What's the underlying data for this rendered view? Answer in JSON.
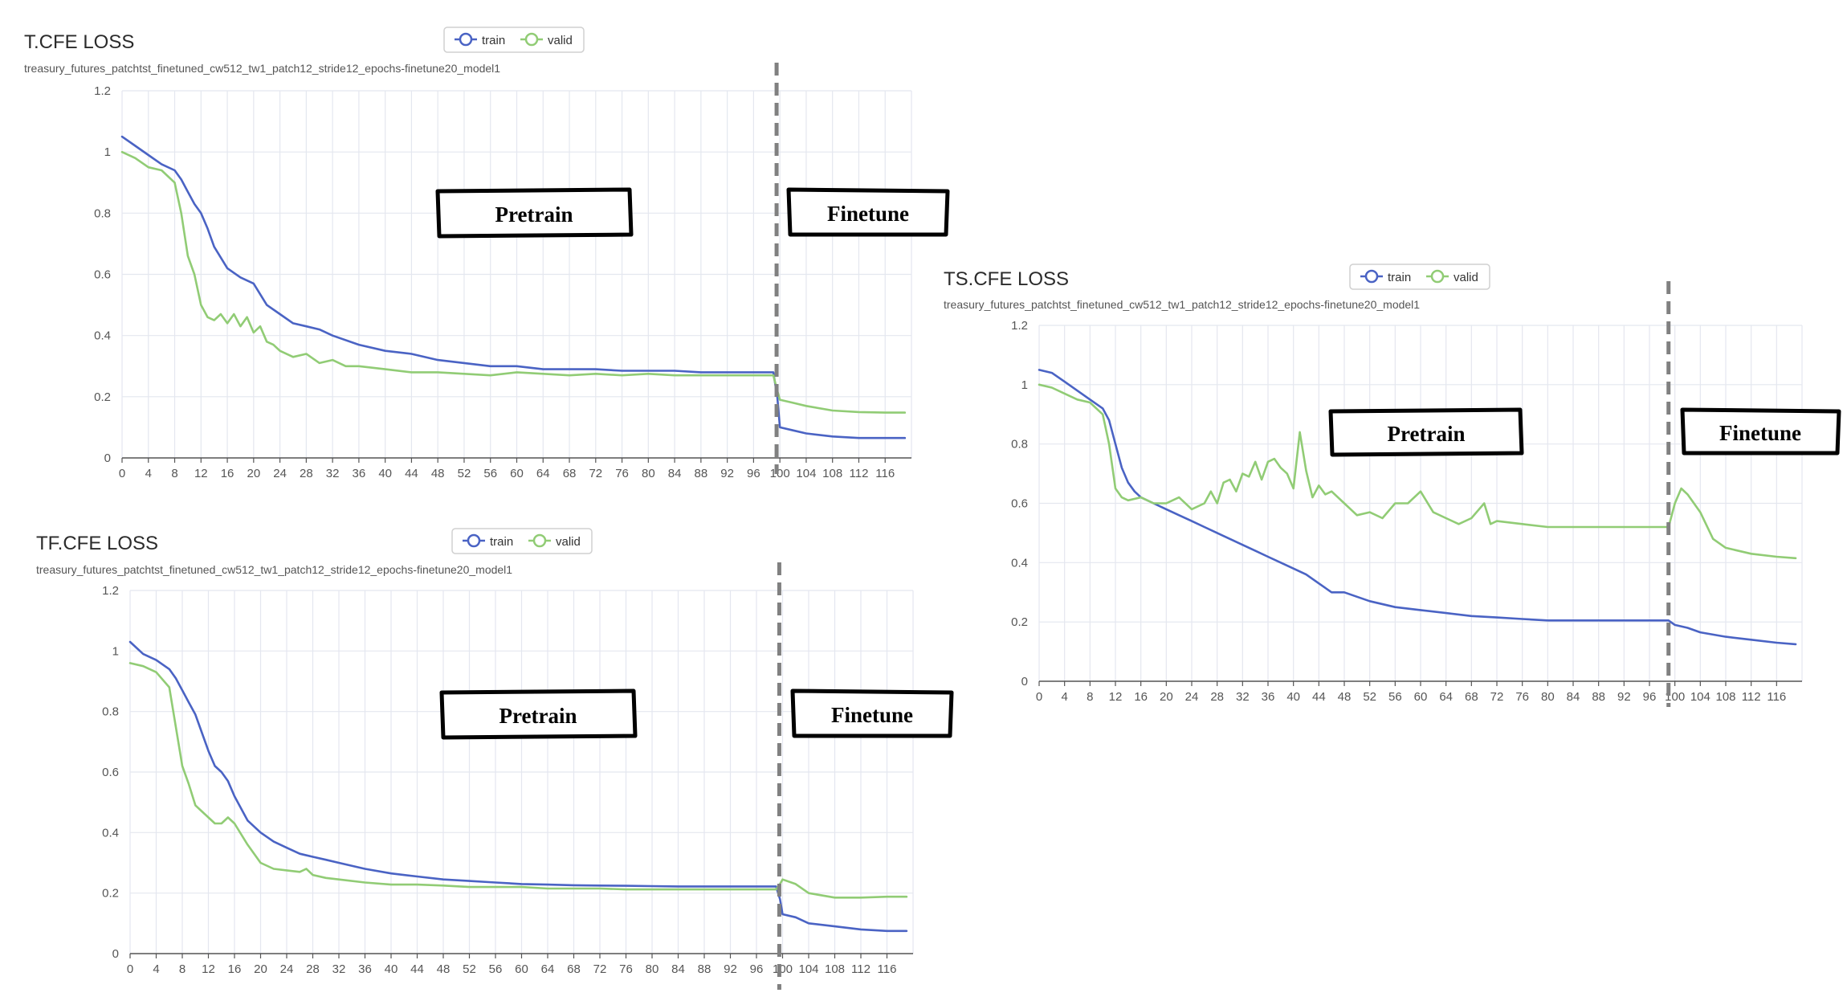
{
  "colors": {
    "train": "#4a63c4",
    "valid": "#91cc75",
    "grid": "#e4e7ef",
    "axis": "#555555",
    "divider": "#808080"
  },
  "legend": {
    "train": "train",
    "valid": "valid"
  },
  "phase_labels": {
    "pretrain": "Pretrain",
    "finetune": "Finetune"
  },
  "chart_data": [
    {
      "id": "tcfe",
      "type": "line",
      "title": "T.CFE LOSS",
      "subtitle": "treasury_futures_patchtst_finetuned_cw512_tw1_patch12_stride12_epochs-finetune20_model1",
      "xlim": [
        0,
        120
      ],
      "xticks": [
        0,
        4,
        8,
        12,
        16,
        20,
        24,
        28,
        32,
        36,
        40,
        44,
        48,
        52,
        56,
        60,
        64,
        68,
        72,
        76,
        80,
        84,
        88,
        92,
        96,
        100,
        104,
        108,
        112,
        116
      ],
      "ylim": [
        0,
        1.2
      ],
      "yticks": [
        "0",
        "0.2",
        "0.4",
        "0.6",
        "0.8",
        "1",
        "1.2"
      ],
      "grid": true,
      "legend_position": "top",
      "divider_x": 99.5,
      "series": [
        {
          "name": "train",
          "x": [
            0,
            2,
            4,
            6,
            8,
            9,
            10,
            11,
            12,
            13,
            14,
            16,
            18,
            20,
            22,
            24,
            26,
            28,
            30,
            32,
            36,
            40,
            44,
            48,
            52,
            56,
            60,
            64,
            68,
            72,
            76,
            80,
            84,
            88,
            92,
            96,
            99,
            99.6,
            100,
            102,
            104,
            108,
            112,
            116,
            119
          ],
          "y": [
            1.05,
            1.02,
            0.99,
            0.96,
            0.94,
            0.91,
            0.87,
            0.83,
            0.8,
            0.75,
            0.69,
            0.62,
            0.59,
            0.57,
            0.5,
            0.47,
            0.44,
            0.43,
            0.42,
            0.4,
            0.37,
            0.35,
            0.34,
            0.32,
            0.31,
            0.3,
            0.3,
            0.29,
            0.29,
            0.29,
            0.285,
            0.285,
            0.285,
            0.28,
            0.28,
            0.28,
            0.28,
            0.2,
            0.1,
            0.09,
            0.08,
            0.07,
            0.065,
            0.065,
            0.065
          ]
        },
        {
          "name": "valid",
          "x": [
            0,
            2,
            4,
            6,
            8,
            9,
            10,
            11,
            12,
            13,
            14,
            15,
            16,
            17,
            18,
            19,
            20,
            21,
            22,
            23,
            24,
            26,
            28,
            30,
            32,
            34,
            36,
            40,
            44,
            48,
            52,
            56,
            60,
            64,
            68,
            72,
            76,
            80,
            84,
            88,
            92,
            96,
            99,
            99.6,
            100,
            102,
            104,
            108,
            112,
            116,
            119
          ],
          "y": [
            1.0,
            0.98,
            0.95,
            0.94,
            0.9,
            0.8,
            0.66,
            0.6,
            0.5,
            0.46,
            0.45,
            0.47,
            0.44,
            0.47,
            0.43,
            0.46,
            0.41,
            0.43,
            0.38,
            0.37,
            0.35,
            0.33,
            0.34,
            0.31,
            0.32,
            0.3,
            0.3,
            0.29,
            0.28,
            0.28,
            0.275,
            0.27,
            0.28,
            0.275,
            0.27,
            0.275,
            0.27,
            0.275,
            0.27,
            0.27,
            0.27,
            0.27,
            0.27,
            0.22,
            0.19,
            0.18,
            0.17,
            0.155,
            0.15,
            0.148,
            0.148
          ]
        }
      ]
    },
    {
      "id": "tfcfe",
      "type": "line",
      "title": "TF.CFE LOSS",
      "subtitle": "treasury_futures_patchtst_finetuned_cw512_tw1_patch12_stride12_epochs-finetune20_model1",
      "xlim": [
        0,
        120
      ],
      "xticks": [
        0,
        4,
        8,
        12,
        16,
        20,
        24,
        28,
        32,
        36,
        40,
        44,
        48,
        52,
        56,
        60,
        64,
        68,
        72,
        76,
        80,
        84,
        88,
        92,
        96,
        100,
        104,
        108,
        112,
        116
      ],
      "ylim": [
        0,
        1.2
      ],
      "yticks": [
        "0",
        "0.2",
        "0.4",
        "0.6",
        "0.8",
        "1",
        "1.2"
      ],
      "grid": true,
      "legend_position": "top",
      "divider_x": 99.5,
      "series": [
        {
          "name": "train",
          "x": [
            0,
            2,
            4,
            6,
            7,
            8,
            9,
            10,
            11,
            12,
            13,
            14,
            15,
            16,
            18,
            20,
            22,
            24,
            26,
            28,
            30,
            32,
            36,
            40,
            44,
            48,
            52,
            56,
            60,
            64,
            68,
            72,
            76,
            80,
            84,
            88,
            92,
            96,
            99,
            99.6,
            100,
            102,
            104,
            108,
            112,
            116,
            119
          ],
          "y": [
            1.03,
            0.99,
            0.97,
            0.94,
            0.91,
            0.87,
            0.83,
            0.79,
            0.73,
            0.67,
            0.62,
            0.6,
            0.57,
            0.52,
            0.44,
            0.4,
            0.37,
            0.35,
            0.33,
            0.32,
            0.31,
            0.3,
            0.28,
            0.265,
            0.255,
            0.245,
            0.24,
            0.235,
            0.23,
            0.228,
            0.226,
            0.225,
            0.224,
            0.223,
            0.222,
            0.222,
            0.222,
            0.222,
            0.222,
            0.18,
            0.13,
            0.12,
            0.1,
            0.09,
            0.08,
            0.075,
            0.075
          ]
        },
        {
          "name": "valid",
          "x": [
            0,
            2,
            4,
            6,
            7,
            8,
            9,
            10,
            11,
            12,
            13,
            14,
            15,
            16,
            18,
            20,
            22,
            24,
            26,
            27,
            28,
            30,
            32,
            36,
            40,
            44,
            48,
            52,
            56,
            60,
            64,
            68,
            72,
            76,
            80,
            84,
            88,
            92,
            96,
            99,
            99.6,
            100,
            102,
            104,
            108,
            112,
            116,
            119
          ],
          "y": [
            0.96,
            0.95,
            0.93,
            0.88,
            0.75,
            0.62,
            0.56,
            0.49,
            0.47,
            0.45,
            0.43,
            0.43,
            0.45,
            0.43,
            0.36,
            0.3,
            0.28,
            0.275,
            0.27,
            0.28,
            0.26,
            0.25,
            0.245,
            0.235,
            0.228,
            0.228,
            0.225,
            0.22,
            0.22,
            0.22,
            0.215,
            0.215,
            0.215,
            0.212,
            0.212,
            0.212,
            0.212,
            0.212,
            0.212,
            0.212,
            0.23,
            0.245,
            0.23,
            0.2,
            0.185,
            0.185,
            0.188,
            0.188
          ]
        }
      ]
    },
    {
      "id": "tscfe",
      "type": "line",
      "title": "TS.CFE LOSS",
      "subtitle": "treasury_futures_patchtst_finetuned_cw512_tw1_patch12_stride12_epochs-finetune20_model1",
      "xlim": [
        0,
        120
      ],
      "xticks": [
        0,
        4,
        8,
        12,
        16,
        20,
        24,
        28,
        32,
        36,
        40,
        44,
        48,
        52,
        56,
        60,
        64,
        68,
        72,
        76,
        80,
        84,
        88,
        92,
        96,
        100,
        104,
        108,
        112,
        116
      ],
      "ylim": [
        0,
        1.2
      ],
      "yticks": [
        "0",
        "0.2",
        "0.4",
        "0.6",
        "0.8",
        "1",
        "1.2"
      ],
      "grid": true,
      "legend_position": "top",
      "divider_x": 99,
      "series": [
        {
          "name": "train",
          "x": [
            0,
            2,
            4,
            6,
            8,
            10,
            11,
            12,
            13,
            14,
            15,
            16,
            18,
            20,
            22,
            24,
            26,
            28,
            30,
            32,
            34,
            36,
            38,
            40,
            42,
            44,
            46,
            48,
            50,
            52,
            56,
            60,
            64,
            68,
            72,
            76,
            80,
            84,
            88,
            92,
            96,
            99,
            100,
            102,
            104,
            108,
            112,
            116,
            119
          ],
          "y": [
            1.05,
            1.04,
            1.01,
            0.98,
            0.95,
            0.92,
            0.88,
            0.8,
            0.72,
            0.67,
            0.64,
            0.62,
            0.6,
            0.58,
            0.56,
            0.54,
            0.52,
            0.5,
            0.48,
            0.46,
            0.44,
            0.42,
            0.4,
            0.38,
            0.36,
            0.33,
            0.3,
            0.3,
            0.285,
            0.27,
            0.25,
            0.24,
            0.23,
            0.22,
            0.215,
            0.21,
            0.205,
            0.205,
            0.205,
            0.205,
            0.205,
            0.205,
            0.19,
            0.18,
            0.165,
            0.15,
            0.14,
            0.13,
            0.125
          ]
        },
        {
          "name": "valid",
          "x": [
            0,
            2,
            4,
            6,
            8,
            10,
            11,
            12,
            13,
            14,
            16,
            18,
            20,
            22,
            24,
            26,
            27,
            28,
            29,
            30,
            31,
            32,
            33,
            34,
            35,
            36,
            37,
            38,
            39,
            40,
            41,
            42,
            43,
            44,
            45,
            46,
            48,
            50,
            52,
            54,
            56,
            58,
            60,
            62,
            64,
            66,
            68,
            70,
            71,
            72,
            76,
            80,
            84,
            88,
            92,
            96,
            99,
            100,
            101,
            102,
            104,
            106,
            108,
            112,
            116,
            119
          ],
          "y": [
            1.0,
            0.99,
            0.97,
            0.95,
            0.94,
            0.9,
            0.8,
            0.65,
            0.62,
            0.61,
            0.62,
            0.6,
            0.6,
            0.62,
            0.58,
            0.6,
            0.64,
            0.6,
            0.67,
            0.68,
            0.64,
            0.7,
            0.69,
            0.74,
            0.68,
            0.74,
            0.75,
            0.72,
            0.7,
            0.65,
            0.84,
            0.71,
            0.62,
            0.66,
            0.63,
            0.64,
            0.6,
            0.56,
            0.57,
            0.55,
            0.6,
            0.6,
            0.64,
            0.57,
            0.55,
            0.53,
            0.55,
            0.6,
            0.53,
            0.54,
            0.53,
            0.52,
            0.52,
            0.52,
            0.52,
            0.52,
            0.52,
            0.6,
            0.65,
            0.63,
            0.57,
            0.48,
            0.45,
            0.43,
            0.42,
            0.415
          ]
        }
      ]
    }
  ]
}
